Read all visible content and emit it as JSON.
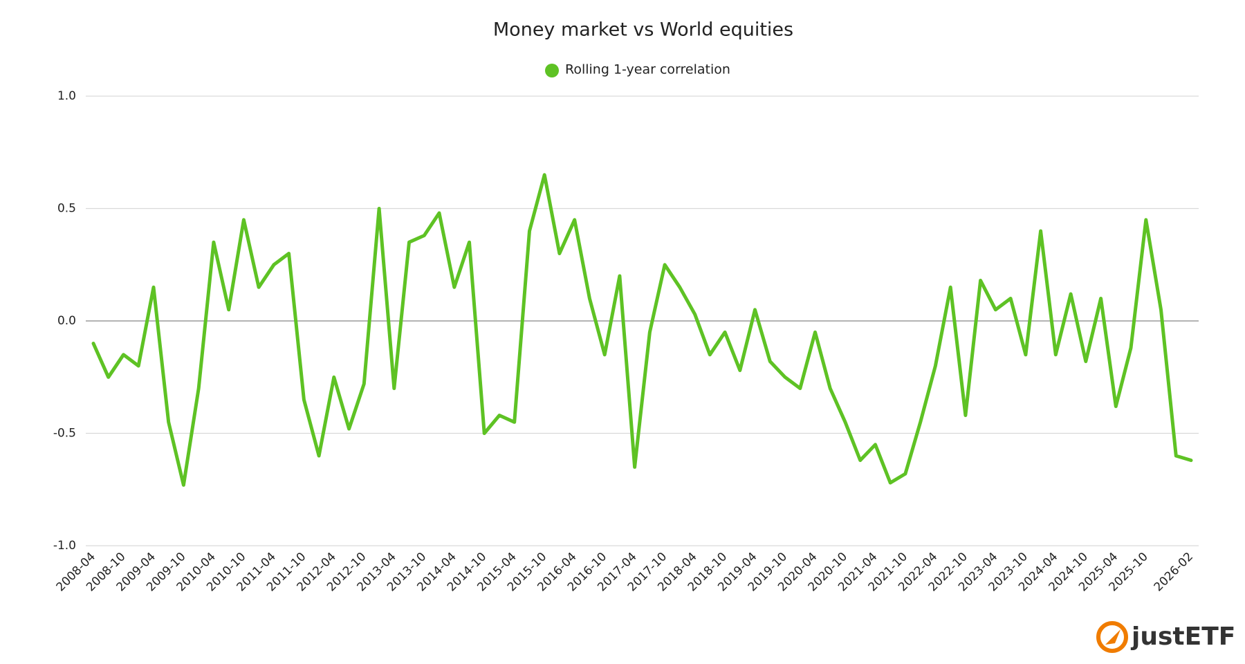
{
  "chart_data": {
    "type": "line",
    "title": "Money market vs World equities",
    "categories": [
      "2008-04",
      null,
      "2008-10",
      null,
      "2009-04",
      null,
      "2009-10",
      null,
      "2010-04",
      null,
      "2010-10",
      null,
      "2011-04",
      null,
      "2011-10",
      null,
      "2012-04",
      null,
      "2012-10",
      null,
      "2013-04",
      null,
      "2013-10",
      null,
      "2014-04",
      null,
      "2014-10",
      null,
      "2015-04",
      null,
      "2015-10",
      null,
      "2016-04",
      null,
      "2016-10",
      null,
      "2017-04",
      null,
      "2017-10",
      null,
      "2018-04",
      null,
      "2018-10",
      null,
      "2019-04",
      null,
      "2019-10",
      null,
      "2020-04",
      null,
      "2020-10",
      null,
      "2021-04",
      null,
      "2021-10",
      null,
      "2022-04",
      null,
      "2022-10",
      null,
      "2023-04",
      null,
      "2023-10",
      null,
      "2024-04",
      null,
      "2024-10",
      null,
      "2025-04",
      null,
      "2025-10",
      null,
      null,
      "2026-02"
    ],
    "series": [
      {
        "name": "Rolling 1-year correlation",
        "color": "#5ec224",
        "values": [
          -0.1,
          -0.25,
          -0.15,
          -0.2,
          0.15,
          -0.45,
          -0.73,
          -0.3,
          0.35,
          0.05,
          0.45,
          0.15,
          0.25,
          0.3,
          -0.35,
          -0.6,
          -0.25,
          -0.48,
          -0.28,
          0.5,
          -0.3,
          0.35,
          0.38,
          0.48,
          0.15,
          0.35,
          -0.5,
          -0.42,
          -0.45,
          0.4,
          0.65,
          0.3,
          0.45,
          0.1,
          -0.15,
          0.2,
          -0.65,
          -0.05,
          0.25,
          0.15,
          0.03,
          -0.15,
          -0.05,
          -0.22,
          0.05,
          -0.18,
          -0.25,
          -0.3,
          -0.05,
          -0.3,
          -0.45,
          -0.62,
          -0.55,
          -0.72,
          -0.68,
          -0.45,
          -0.2,
          0.15,
          -0.42,
          0.18,
          0.05,
          0.1,
          -0.15,
          0.4,
          -0.15,
          0.12,
          -0.18,
          0.1,
          -0.38,
          -0.12,
          0.45,
          0.05,
          -0.6,
          -0.62
        ]
      }
    ],
    "ylim": [
      -1,
      1
    ],
    "yticks": [
      {
        "value": -1,
        "label": "-1.0"
      },
      -0.5,
      {
        "value": 0,
        "label": "0.0"
      },
      0.5,
      {
        "value": 1,
        "label": "1.0"
      }
    ],
    "grid": true
  },
  "brand": "justETF"
}
